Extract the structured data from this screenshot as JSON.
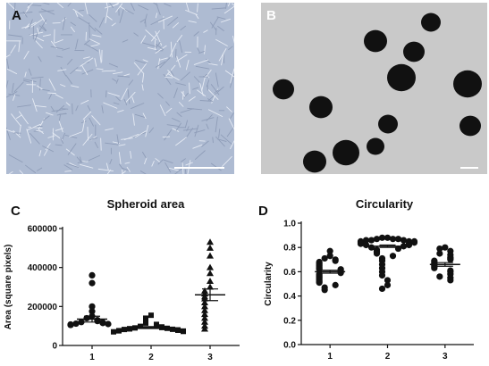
{
  "panels": {
    "a": {
      "letter": "A"
    },
    "b": {
      "letter": "B"
    },
    "c": {
      "letter": "C"
    },
    "d": {
      "letter": "D"
    }
  },
  "colors": {
    "culture_bg": "#aebbd2",
    "spheroid_bg": "#c9c9c9",
    "spheroid": "#111111",
    "scale_bar": "#ffffff",
    "points": "#111111"
  },
  "chart_data": [
    {
      "type": "scatter",
      "title": "Spheroid area",
      "xlabel": "",
      "ylabel": "Area (square pixels)",
      "categories": [
        "1",
        "2",
        "3"
      ],
      "ylim": [
        0,
        600000
      ],
      "yticks": [
        "0",
        "200000",
        "400000",
        "600000"
      ],
      "series": [
        {
          "category": "1",
          "mean": 135000,
          "sem": 15000,
          "values": [
            360000,
            320000,
            200000,
            175000,
            150000,
            140000,
            130000,
            125000,
            120000,
            118000,
            115000,
            112000,
            110000,
            108000,
            105000
          ]
        },
        {
          "category": "2",
          "mean": 92000,
          "sem": 5000,
          "values": [
            155000,
            140000,
            125000,
            115000,
            108000,
            102000,
            98000,
            95000,
            92000,
            90000,
            88000,
            86000,
            85000,
            83000,
            82000,
            80000,
            78000,
            76000,
            75000,
            74000,
            72000,
            70000
          ]
        },
        {
          "category": "3",
          "mean": 260000,
          "sem": 30000,
          "values": [
            530000,
            500000,
            460000,
            400000,
            370000,
            330000,
            300000,
            280000,
            265000,
            250000,
            240000,
            220000,
            200000,
            180000,
            160000,
            140000,
            120000,
            100000,
            85000
          ]
        }
      ]
    },
    {
      "type": "scatter",
      "title": "Circularity",
      "xlabel": "",
      "ylabel": "Circularity",
      "categories": [
        "1",
        "2",
        "3"
      ],
      "ylim": [
        0,
        1.0
      ],
      "yticks": [
        "0.0",
        "0.2",
        "0.4",
        "0.6",
        "0.8",
        "1.0"
      ],
      "series": [
        {
          "category": "1",
          "mean": 0.6,
          "sem": 0.012,
          "values": [
            0.77,
            0.73,
            0.71,
            0.7,
            0.69,
            0.68,
            0.67,
            0.66,
            0.65,
            0.64,
            0.63,
            0.62,
            0.62,
            0.61,
            0.6,
            0.59,
            0.58,
            0.57,
            0.56,
            0.55,
            0.54,
            0.53,
            0.52,
            0.51,
            0.49,
            0.47,
            0.45
          ]
        },
        {
          "category": "2",
          "mean": 0.81,
          "sem": 0.01,
          "values": [
            0.88,
            0.88,
            0.87,
            0.87,
            0.87,
            0.86,
            0.86,
            0.86,
            0.85,
            0.85,
            0.85,
            0.84,
            0.84,
            0.83,
            0.83,
            0.82,
            0.82,
            0.81,
            0.8,
            0.79,
            0.78,
            0.77,
            0.76,
            0.75,
            0.73,
            0.71,
            0.69,
            0.66,
            0.63,
            0.6,
            0.57,
            0.53,
            0.49,
            0.46
          ]
        },
        {
          "category": "3",
          "mean": 0.66,
          "sem": 0.015,
          "values": [
            0.8,
            0.79,
            0.77,
            0.75,
            0.74,
            0.72,
            0.71,
            0.7,
            0.69,
            0.68,
            0.67,
            0.66,
            0.65,
            0.64,
            0.63,
            0.61,
            0.6,
            0.58,
            0.56,
            0.55,
            0.53
          ]
        }
      ]
    }
  ]
}
